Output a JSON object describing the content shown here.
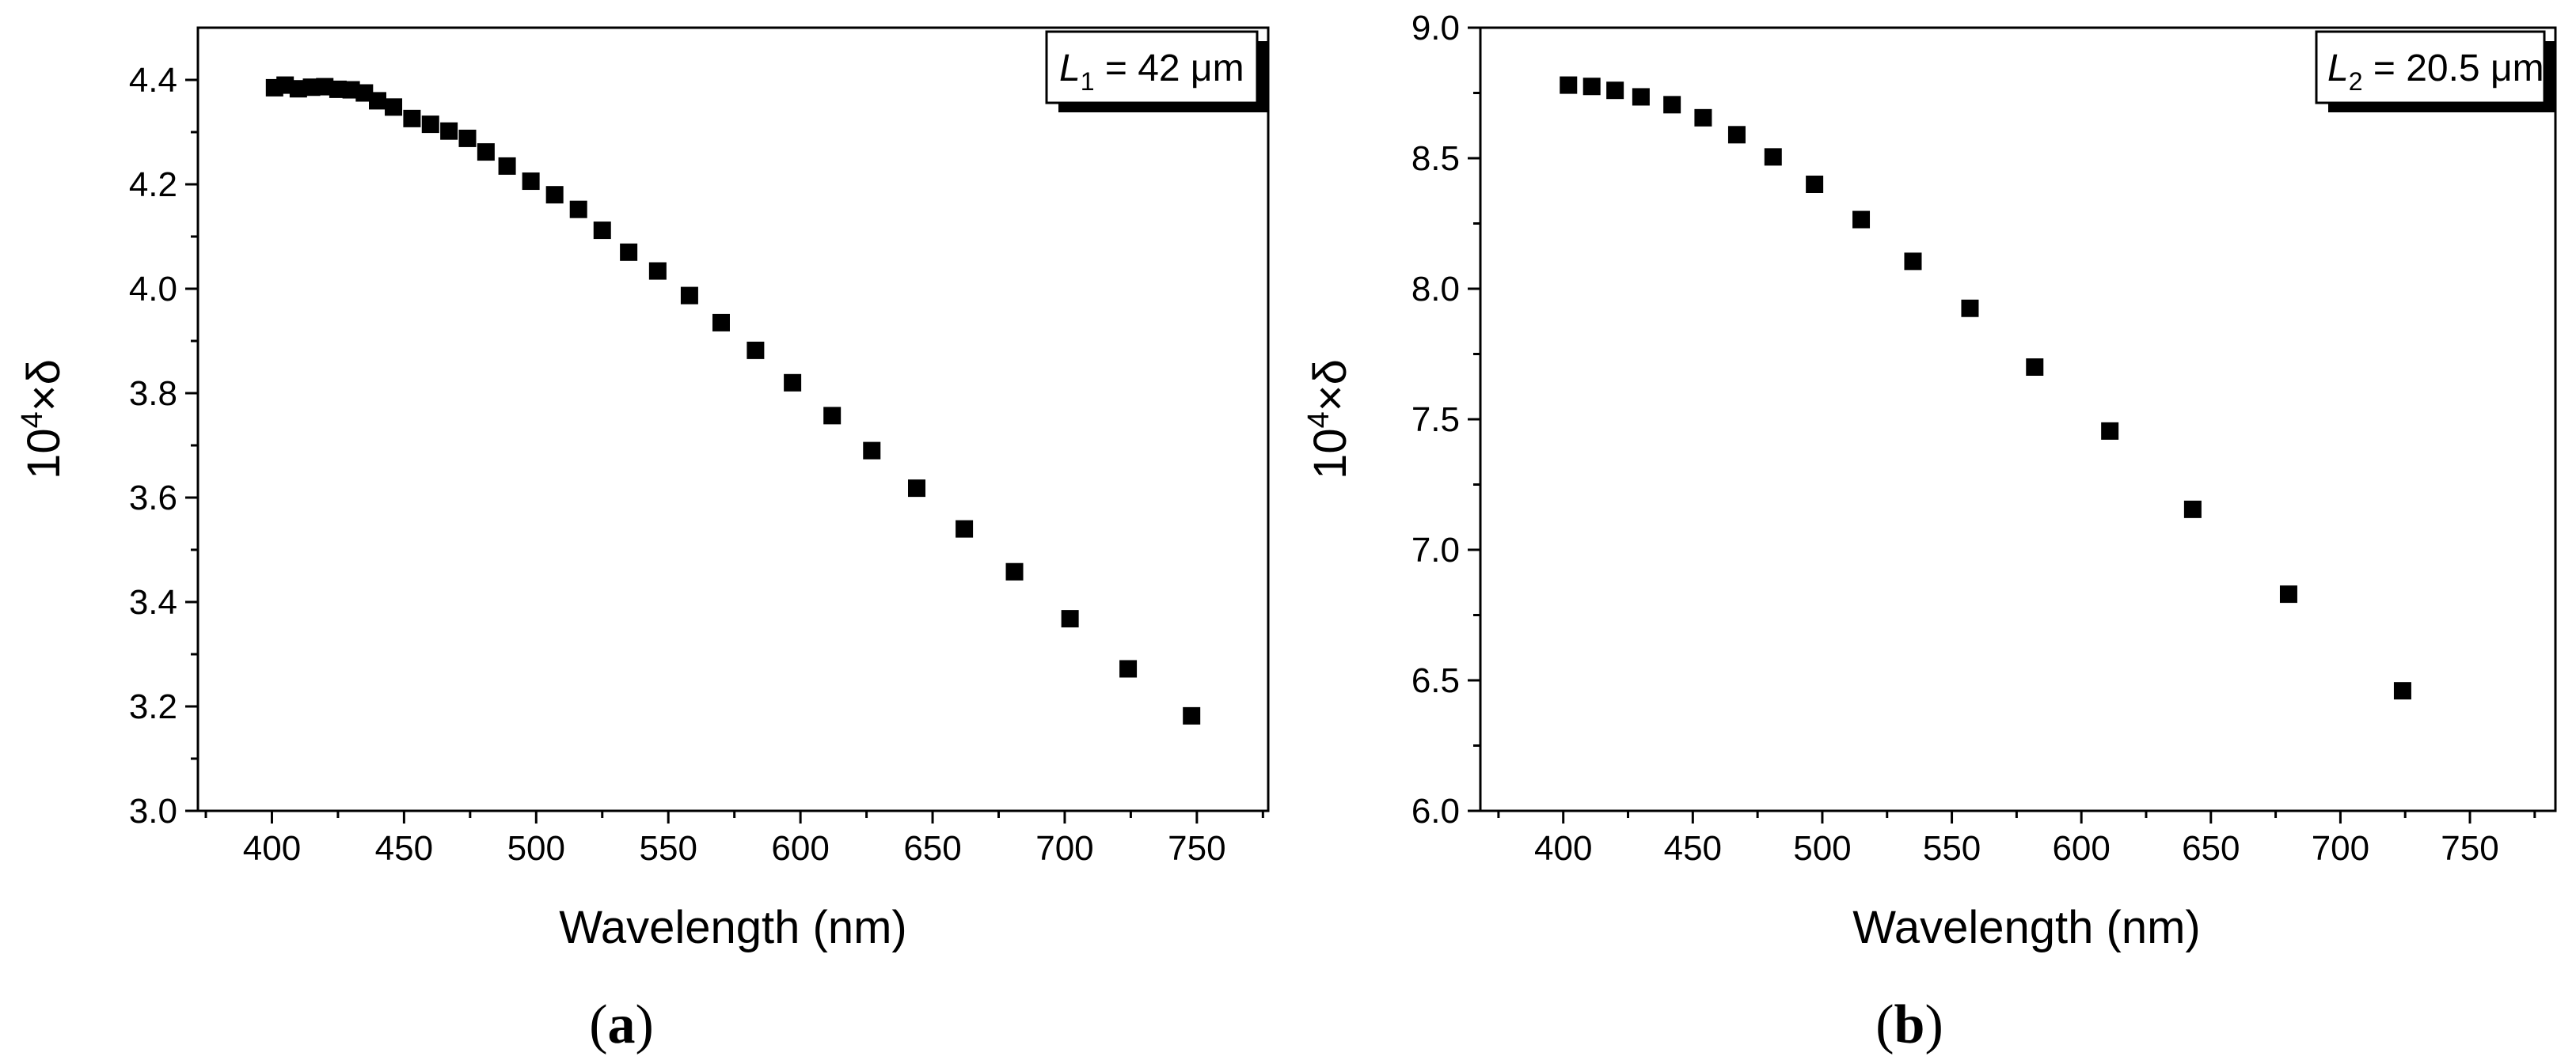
{
  "chart_data": [
    {
      "panel": "a",
      "type": "scatter",
      "title": "",
      "xlabel": "Wavelength (nm)",
      "ylabel": "10^4×δ",
      "ylabel_base": "10",
      "ylabel_exp": "4",
      "ylabel_rest": "×δ",
      "xlim": [
        372,
        777
      ],
      "ylim": [
        3.0,
        4.5
      ],
      "xticks": [
        400,
        450,
        500,
        550,
        600,
        650,
        700,
        750
      ],
      "yticks": [
        3.0,
        3.2,
        3.4,
        3.6,
        3.8,
        4.0,
        4.2,
        4.4
      ],
      "ytick_labels": [
        "3.0",
        "3.2",
        "3.4",
        "3.6",
        "3.8",
        "4.0",
        "4.2",
        "4.4"
      ],
      "legend": {
        "var": "L",
        "sub": "1",
        "text": " = 42 μm"
      },
      "panel_label": "a",
      "x": [
        401,
        405,
        410,
        415,
        420,
        425,
        430,
        435,
        440,
        446,
        453,
        460,
        467,
        474,
        481,
        489,
        498,
        507,
        516,
        525,
        535,
        546,
        558,
        570,
        583,
        597,
        612,
        627,
        644,
        662,
        681,
        702,
        724,
        748
      ],
      "y": [
        4.385,
        4.39,
        4.383,
        4.386,
        4.387,
        4.382,
        4.381,
        4.375,
        4.36,
        4.348,
        4.326,
        4.315,
        4.302,
        4.288,
        4.262,
        4.235,
        4.206,
        4.18,
        4.152,
        4.112,
        4.07,
        4.034,
        3.987,
        3.935,
        3.882,
        3.82,
        3.757,
        3.69,
        3.618,
        3.54,
        3.458,
        3.368,
        3.272,
        3.182
      ]
    },
    {
      "panel": "b",
      "type": "scatter",
      "title": "",
      "xlabel": "Wavelength (nm)",
      "ylabel": "10^4×δ",
      "ylabel_base": "10",
      "ylabel_exp": "4",
      "ylabel_rest": "×δ",
      "xlim": [
        368,
        783
      ],
      "ylim": [
        6.0,
        9.0
      ],
      "xticks": [
        400,
        450,
        500,
        550,
        600,
        650,
        700,
        750
      ],
      "yticks": [
        6.0,
        6.5,
        7.0,
        7.5,
        8.0,
        8.5,
        9.0
      ],
      "ytick_labels": [
        "6.0",
        "6.5",
        "7.0",
        "7.5",
        "8.0",
        "8.5",
        "9.0"
      ],
      "legend": {
        "var": "L",
        "sub": "2",
        "text": " = 20.5 μm"
      },
      "panel_label": "b",
      "x": [
        402,
        411,
        420,
        430,
        442,
        454,
        467,
        481,
        497,
        515,
        535,
        557,
        582,
        611,
        643,
        680,
        724
      ],
      "y": [
        8.78,
        8.775,
        8.76,
        8.735,
        8.705,
        8.655,
        8.59,
        8.505,
        8.4,
        8.265,
        8.105,
        7.925,
        7.7,
        7.455,
        7.155,
        6.83,
        6.46
      ]
    }
  ]
}
